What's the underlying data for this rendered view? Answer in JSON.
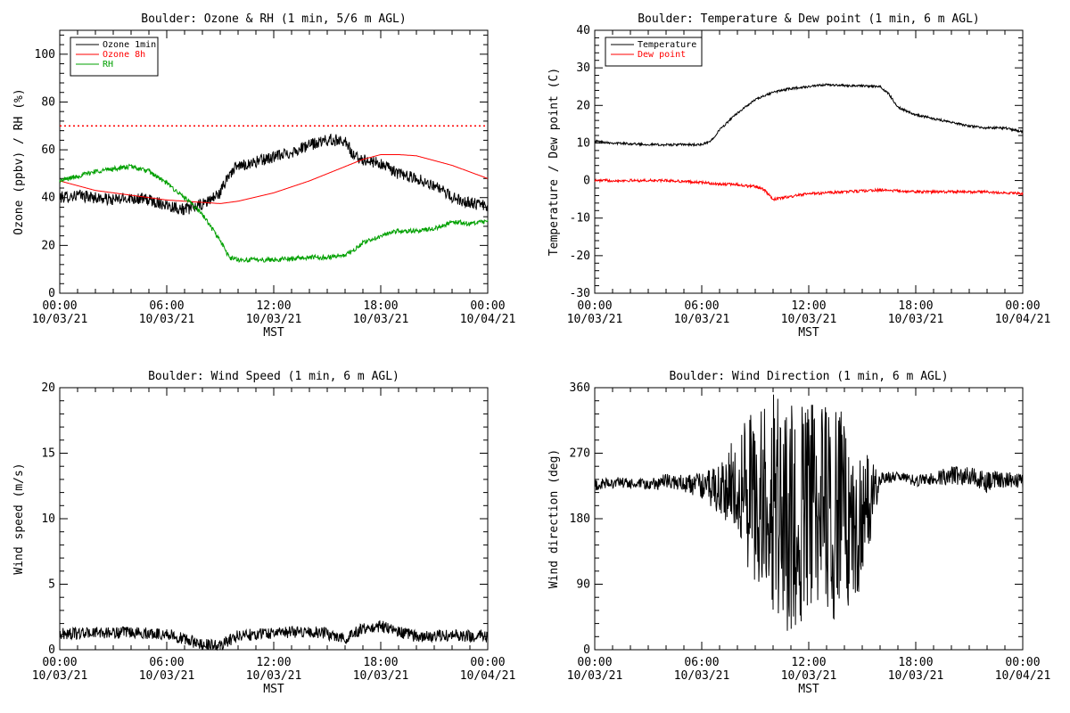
{
  "chart_data": [
    {
      "type": "line",
      "title": "Boulder: Ozone & RH (1 min, 5/6 m AGL)",
      "xlabel": "MST",
      "ylabel": "Ozone (ppbv) / RH (%)",
      "xlim": [
        0,
        24
      ],
      "ylim": [
        0,
        110
      ],
      "x_ticks": [
        {
          "value": 0,
          "time": "00:00",
          "date": "10/03/21"
        },
        {
          "value": 6,
          "time": "06:00",
          "date": "10/03/21"
        },
        {
          "value": 12,
          "time": "12:00",
          "date": "10/03/21"
        },
        {
          "value": 18,
          "time": "18:00",
          "date": "10/03/21"
        },
        {
          "value": 24,
          "time": "00:00",
          "date": "10/04/21"
        }
      ],
      "y_ticks": [
        0,
        20,
        40,
        60,
        80,
        100
      ],
      "reference_line": {
        "y": 70,
        "color": "#ff0000",
        "style": "dotted"
      },
      "legend_position": "top-left",
      "series": [
        {
          "name": "Ozone 1min",
          "color": "#000000",
          "noise": 2.5,
          "x": [
            0,
            1,
            2,
            3,
            4,
            5,
            6,
            7,
            8,
            9,
            9.5,
            10,
            11,
            12,
            13,
            14,
            15,
            16,
            16.5,
            17,
            18,
            19,
            20,
            21,
            22,
            23,
            24
          ],
          "y": [
            40,
            41,
            40,
            39,
            40,
            39,
            37,
            35,
            37,
            42,
            50,
            53,
            55,
            57,
            59,
            62,
            64,
            64,
            57,
            56,
            54,
            50,
            48,
            45,
            40,
            38,
            36
          ]
        },
        {
          "name": "Ozone 8h",
          "color": "#ff0000",
          "noise": 0,
          "x": [
            0,
            2,
            4,
            6,
            8,
            9,
            10,
            12,
            14,
            16,
            17,
            18,
            19,
            20,
            22,
            24
          ],
          "y": [
            47,
            43,
            41,
            39,
            38,
            37.5,
            38.5,
            42,
            47,
            53,
            56,
            58,
            58,
            57.5,
            53.5,
            48
          ]
        },
        {
          "name": "RH",
          "color": "#00a000",
          "noise": 1.0,
          "x": [
            0,
            2,
            3,
            4,
            5,
            6,
            7,
            8,
            9,
            9.5,
            10,
            12,
            14,
            15,
            16,
            16.5,
            17,
            18,
            19,
            20,
            21,
            22,
            23,
            24
          ],
          "y": [
            47,
            51,
            52,
            53,
            51,
            46,
            40,
            33,
            22,
            15,
            14,
            14,
            15,
            15,
            16,
            18,
            21,
            24,
            26,
            26,
            27,
            30,
            29,
            30
          ]
        }
      ]
    },
    {
      "type": "line",
      "title": "Boulder: Temperature & Dew point (1 min, 6 m AGL)",
      "xlabel": "MST",
      "ylabel": "Temperature / Dew point (C)",
      "xlim": [
        0,
        24
      ],
      "ylim": [
        -30,
        40
      ],
      "x_ticks": [
        {
          "value": 0,
          "time": "00:00",
          "date": "10/03/21"
        },
        {
          "value": 6,
          "time": "06:00",
          "date": "10/03/21"
        },
        {
          "value": 12,
          "time": "12:00",
          "date": "10/03/21"
        },
        {
          "value": 18,
          "time": "18:00",
          "date": "10/03/21"
        },
        {
          "value": 24,
          "time": "00:00",
          "date": "10/04/21"
        }
      ],
      "y_ticks": [
        -30,
        -20,
        -10,
        0,
        10,
        20,
        30,
        40
      ],
      "legend_position": "top-left",
      "series": [
        {
          "name": "Temperature",
          "color": "#000000",
          "noise": 0.3,
          "x": [
            0,
            1,
            2,
            3,
            4,
            5,
            6,
            6.5,
            7,
            8,
            9,
            10,
            11,
            12,
            13,
            14,
            15,
            16,
            16.5,
            17,
            18,
            19,
            20,
            21,
            22,
            23,
            24
          ],
          "y": [
            10.5,
            10,
            9.8,
            9.6,
            9.5,
            9.6,
            9.5,
            10.5,
            13.5,
            18,
            21.5,
            23.5,
            24.5,
            25,
            25.5,
            25.3,
            25.2,
            25,
            23,
            19.5,
            17.5,
            16.5,
            15.5,
            14.5,
            14,
            14,
            13
          ]
        },
        {
          "name": "Dew point",
          "color": "#ff0000",
          "noise": 0.35,
          "x": [
            0,
            2,
            4,
            6,
            7,
            8,
            8.5,
            9,
            9.5,
            10,
            12,
            14,
            16,
            18,
            20,
            22,
            24
          ],
          "y": [
            0,
            0,
            0,
            -0.5,
            -1,
            -1,
            -1.5,
            -1.5,
            -2.5,
            -5,
            -3.5,
            -3,
            -2.5,
            -3,
            -3,
            -3,
            -3.5
          ]
        }
      ]
    },
    {
      "type": "line",
      "title": "Boulder: Wind Speed (1 min, 6 m AGL)",
      "xlabel": "MST",
      "ylabel": "Wind speed (m/s)",
      "xlim": [
        0,
        24
      ],
      "ylim": [
        0,
        20
      ],
      "x_ticks": [
        {
          "value": 0,
          "time": "00:00",
          "date": "10/03/21"
        },
        {
          "value": 6,
          "time": "06:00",
          "date": "10/03/21"
        },
        {
          "value": 12,
          "time": "12:00",
          "date": "10/03/21"
        },
        {
          "value": 18,
          "time": "18:00",
          "date": "10/03/21"
        },
        {
          "value": 24,
          "time": "00:00",
          "date": "10/04/21"
        }
      ],
      "y_ticks": [
        0,
        5,
        10,
        15,
        20
      ],
      "series": [
        {
          "color": "#000000",
          "noise": 0.45,
          "x": [
            0,
            2,
            4,
            6,
            7,
            8,
            9,
            10,
            12,
            14,
            15,
            16,
            17,
            18,
            19,
            20,
            22,
            24
          ],
          "y": [
            1.2,
            1.3,
            1.3,
            1.2,
            0.8,
            0.4,
            0.3,
            1.1,
            1.3,
            1.4,
            1.2,
            0.9,
            1.6,
            1.8,
            1.4,
            1.0,
            1.1,
            1.0
          ]
        }
      ]
    },
    {
      "type": "line",
      "title": "Boulder: Wind Direction (1 min, 6 m AGL)",
      "xlabel": "MST",
      "ylabel": "Wind direction (deg)",
      "xlim": [
        0,
        24
      ],
      "ylim": [
        0,
        360
      ],
      "x_ticks": [
        {
          "value": 0,
          "time": "00:00",
          "date": "10/03/21"
        },
        {
          "value": 6,
          "time": "06:00",
          "date": "10/03/21"
        },
        {
          "value": 12,
          "time": "12:00",
          "date": "10/03/21"
        },
        {
          "value": 18,
          "time": "18:00",
          "date": "10/03/21"
        },
        {
          "value": 24,
          "time": "00:00",
          "date": "10/04/21"
        }
      ],
      "y_ticks": [
        0,
        90,
        180,
        270,
        360
      ],
      "series": [
        {
          "color": "#000000",
          "x": [
            0,
            1,
            2,
            3,
            4,
            5,
            6,
            7,
            8,
            9,
            10,
            11,
            12,
            13,
            14,
            15,
            16,
            17,
            18,
            19,
            20,
            21,
            22,
            23,
            24
          ],
          "y": [
            225,
            230,
            228,
            226,
            232,
            228,
            225,
            220,
            230,
            210,
            200,
            180,
            200,
            190,
            185,
            180,
            235,
            238,
            232,
            235,
            240,
            238,
            230,
            235,
            230
          ],
          "spread": [
            8,
            8,
            8,
            8,
            10,
            12,
            18,
            35,
            70,
            130,
            160,
            160,
            150,
            150,
            140,
            100,
            10,
            6,
            8,
            8,
            14,
            14,
            14,
            12,
            10
          ]
        }
      ]
    }
  ]
}
